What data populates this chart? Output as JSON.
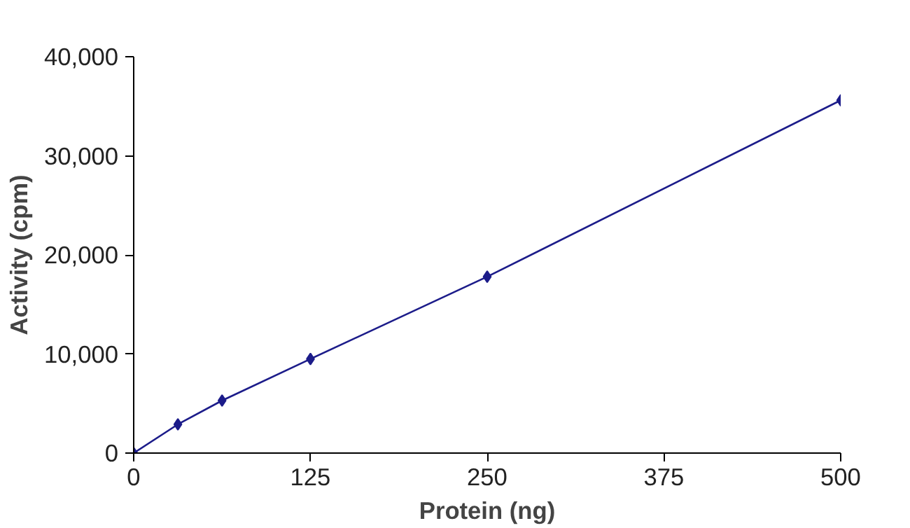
{
  "chart_data": {
    "type": "line",
    "xlabel": "Protein (ng)",
    "ylabel": "Activity (cpm)",
    "x": [
      0,
      31.25,
      62.5,
      125,
      250,
      500
    ],
    "series": [
      {
        "color": "#1c1c8a",
        "values": [
          0,
          2900,
          5300,
          9500,
          17800,
          35600
        ]
      }
    ],
    "xlim": [
      0,
      500
    ],
    "xticks": [
      0,
      125,
      250,
      375,
      500
    ],
    "ylim": [
      0,
      40000
    ],
    "yticks": [
      {
        "value": 0,
        "label": "0"
      },
      {
        "value": 10000,
        "label": "10,000"
      },
      {
        "value": 20000,
        "label": "20,000"
      },
      {
        "value": 30000,
        "label": "30,000"
      },
      {
        "value": 40000,
        "label": "40,000"
      }
    ],
    "grid": false,
    "marker": "diamond",
    "line_style": "solid"
  }
}
